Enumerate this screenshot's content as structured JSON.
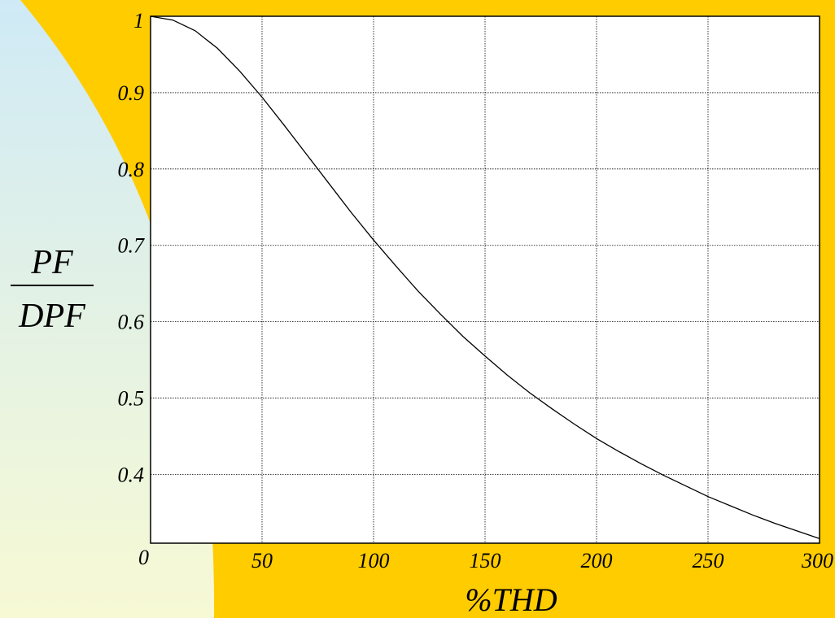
{
  "colors": {
    "background": "#FFCC00",
    "panel_gradient_top": "#CFEAF6",
    "panel_gradient_bottom": "#F7F9D4",
    "plot_area": "#FFFFFF",
    "curve": "#000000",
    "grid": "#000000"
  },
  "chart_data": {
    "type": "line",
    "xlabel": "%THD",
    "ylabel_numerator": "PF",
    "ylabel_denominator": "DPF",
    "xlim": [
      0,
      300
    ],
    "ylim": [
      0.31,
      1.0
    ],
    "xticks": [
      0,
      50,
      100,
      150,
      200,
      250,
      300
    ],
    "xtick_labels": [
      "0",
      "50",
      "100",
      "150",
      "200",
      "250",
      "300"
    ],
    "yticks": [
      1.0,
      0.9,
      0.8,
      0.7,
      0.6,
      0.5,
      0.4
    ],
    "ytick_labels": [
      "1",
      "0.9",
      "0.8",
      "0.7",
      "0.6",
      "0.5",
      "0.4"
    ],
    "grid": true,
    "legend": false,
    "series": [
      {
        "x": [
          0,
          10,
          20,
          30,
          40,
          50,
          60,
          70,
          80,
          90,
          100,
          110,
          120,
          130,
          140,
          150,
          160,
          170,
          180,
          190,
          200,
          210,
          220,
          230,
          240,
          250,
          260,
          270,
          280,
          290,
          300
        ],
        "values": [
          1.0,
          0.995,
          0.981,
          0.958,
          0.928,
          0.894,
          0.857,
          0.819,
          0.781,
          0.743,
          0.707,
          0.673,
          0.64,
          0.61,
          0.581,
          0.555,
          0.53,
          0.507,
          0.486,
          0.466,
          0.447,
          0.43,
          0.414,
          0.399,
          0.385,
          0.371,
          0.359,
          0.347,
          0.336,
          0.326,
          0.316
        ]
      }
    ]
  }
}
